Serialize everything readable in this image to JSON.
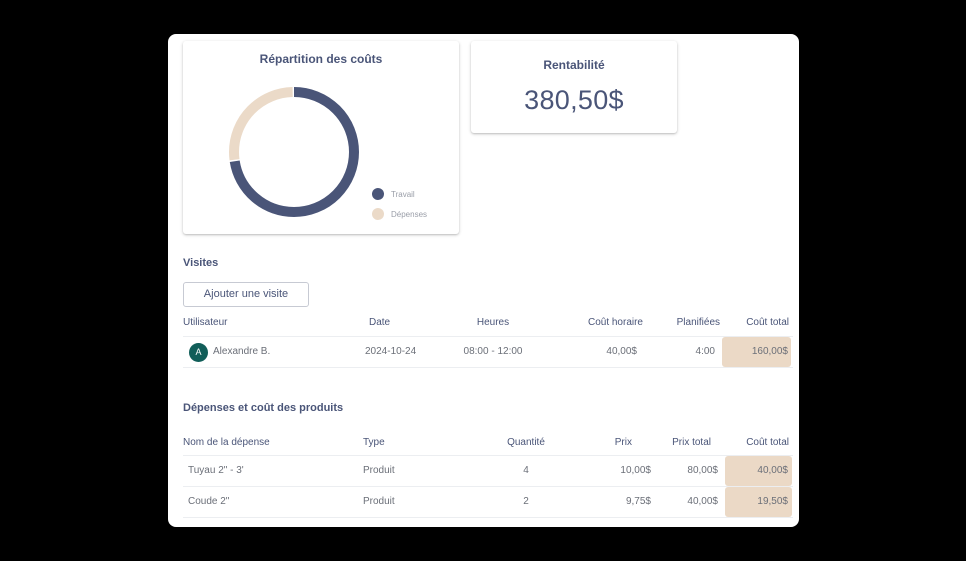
{
  "cost_chart": {
    "title": "Répartition des coûts",
    "legend": [
      {
        "label": "Travail",
        "color": "#4a5578"
      },
      {
        "label": "Dépenses",
        "color": "#ebdac8"
      }
    ]
  },
  "chart_data": {
    "type": "pie",
    "title": "Répartition des coûts",
    "donut": true,
    "categories": [
      "Travail",
      "Dépenses"
    ],
    "values": [
      160.0,
      59.5
    ],
    "colors": [
      "#4a5578",
      "#ebdac8"
    ],
    "legend_position": "right-bottom"
  },
  "profitability": {
    "title": "Rentabilité",
    "value": "380,50$"
  },
  "visits": {
    "title": "Visites",
    "add_button": "Ajouter une visite",
    "columns": [
      "Utilisateur",
      "Date",
      "Heures",
      "Coût horaire",
      "Planifiées",
      "Coût total"
    ],
    "rows": [
      {
        "avatar_initial": "A",
        "user": "Alexandre B.",
        "date": "2024-10-24",
        "hours": "08:00 - 12:00",
        "hourly_cost": "40,00$",
        "planned": "4:00",
        "total_cost": "160,00$"
      }
    ]
  },
  "expenses": {
    "title": "Dépenses et coût des produits",
    "columns": [
      "Nom de la dépense",
      "Type",
      "Quantité",
      "Prix",
      "Prix total",
      "Coût total"
    ],
    "rows": [
      {
        "name": "Tuyau 2\" - 3'",
        "type": "Produit",
        "quantity": "4",
        "price": "10,00$",
        "total_price": "80,00$",
        "total_cost": "40,00$"
      },
      {
        "name": "Coude 2\"",
        "type": "Produit",
        "quantity": "2",
        "price": "9,75$",
        "total_price": "40,00$",
        "total_cost": "19,50$"
      }
    ]
  },
  "colors": {
    "primary": "#4a5578",
    "accent_beige": "#ebd9c6",
    "avatar": "#115e59"
  }
}
